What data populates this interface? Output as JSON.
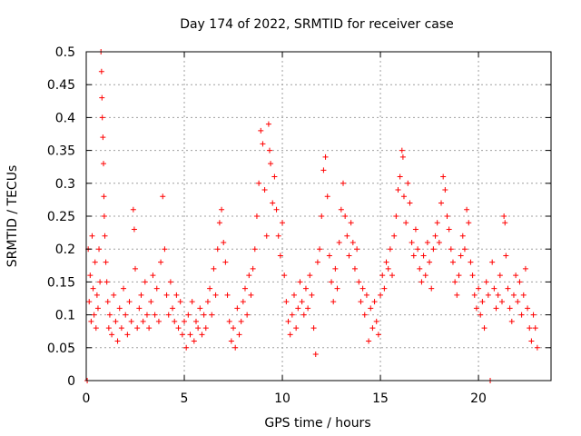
{
  "colors": {
    "marker": "#ff0000",
    "grid": "#a0a0a0",
    "axis": "#000000"
  },
  "chart_data": {
    "type": "scatter",
    "title": "Day 174 of 2022, SRMTID for receiver case",
    "xlabel": "GPS time / hours",
    "ylabel": "SRMTID / TECUs",
    "xlim": [
      0,
      23.7
    ],
    "ylim": [
      0,
      0.5
    ],
    "xticks": [
      0,
      5,
      10,
      15,
      20
    ],
    "xtick_labels": [
      "0",
      "5",
      "10",
      "15",
      "20"
    ],
    "yticks": [
      0,
      0.05,
      0.1,
      0.15,
      0.2,
      0.25,
      0.3,
      0.35,
      0.4,
      0.45,
      0.5
    ],
    "ytick_labels": [
      "0",
      "0.05",
      "0.1",
      "0.15",
      "0.2",
      "0.25",
      "0.3",
      "0.35",
      "0.4",
      "0.45",
      "0.5"
    ],
    "grid": true,
    "legend": "none",
    "marker": "+",
    "series": [
      {
        "name": "SRMTID",
        "points": [
          [
            0.05,
            0.0
          ],
          [
            0.1,
            0.2
          ],
          [
            0.15,
            0.12
          ],
          [
            0.2,
            0.16
          ],
          [
            0.25,
            0.09
          ],
          [
            0.3,
            0.22
          ],
          [
            0.35,
            0.14
          ],
          [
            0.4,
            0.1
          ],
          [
            0.45,
            0.18
          ],
          [
            0.5,
            0.08
          ],
          [
            0.55,
            0.13
          ],
          [
            0.6,
            0.11
          ],
          [
            0.65,
            0.2
          ],
          [
            0.7,
            0.15
          ],
          [
            0.75,
            0.5
          ],
          [
            0.78,
            0.47
          ],
          [
            0.8,
            0.43
          ],
          [
            0.82,
            0.4
          ],
          [
            0.85,
            0.37
          ],
          [
            0.88,
            0.33
          ],
          [
            0.9,
            0.28
          ],
          [
            0.92,
            0.25
          ],
          [
            0.95,
            0.22
          ],
          [
            1.0,
            0.18
          ],
          [
            1.05,
            0.15
          ],
          [
            1.1,
            0.12
          ],
          [
            1.15,
            0.08
          ],
          [
            1.2,
            0.1
          ],
          [
            1.3,
            0.07
          ],
          [
            1.4,
            0.13
          ],
          [
            1.5,
            0.09
          ],
          [
            1.6,
            0.06
          ],
          [
            1.7,
            0.11
          ],
          [
            1.8,
            0.08
          ],
          [
            1.9,
            0.14
          ],
          [
            2.0,
            0.1
          ],
          [
            2.1,
            0.07
          ],
          [
            2.2,
            0.12
          ],
          [
            2.3,
            0.09
          ],
          [
            2.4,
            0.26
          ],
          [
            2.45,
            0.23
          ],
          [
            2.5,
            0.17
          ],
          [
            2.6,
            0.08
          ],
          [
            2.7,
            0.11
          ],
          [
            2.8,
            0.13
          ],
          [
            2.9,
            0.09
          ],
          [
            3.0,
            0.15
          ],
          [
            3.1,
            0.1
          ],
          [
            3.2,
            0.08
          ],
          [
            3.3,
            0.12
          ],
          [
            3.4,
            0.16
          ],
          [
            3.5,
            0.1
          ],
          [
            3.6,
            0.14
          ],
          [
            3.7,
            0.09
          ],
          [
            3.8,
            0.18
          ],
          [
            3.9,
            0.28
          ],
          [
            4.0,
            0.2
          ],
          [
            4.1,
            0.13
          ],
          [
            4.2,
            0.1
          ],
          [
            4.3,
            0.15
          ],
          [
            4.4,
            0.11
          ],
          [
            4.5,
            0.09
          ],
          [
            4.6,
            0.13
          ],
          [
            4.7,
            0.08
          ],
          [
            4.8,
            0.12
          ],
          [
            4.9,
            0.07
          ],
          [
            5.0,
            0.09
          ],
          [
            5.1,
            0.05
          ],
          [
            5.2,
            0.1
          ],
          [
            5.3,
            0.07
          ],
          [
            5.4,
            0.12
          ],
          [
            5.5,
            0.06
          ],
          [
            5.6,
            0.09
          ],
          [
            5.7,
            0.08
          ],
          [
            5.8,
            0.11
          ],
          [
            5.9,
            0.07
          ],
          [
            6.0,
            0.1
          ],
          [
            6.1,
            0.08
          ],
          [
            6.2,
            0.12
          ],
          [
            6.3,
            0.14
          ],
          [
            6.4,
            0.1
          ],
          [
            6.5,
            0.17
          ],
          [
            6.6,
            0.13
          ],
          [
            6.7,
            0.2
          ],
          [
            6.8,
            0.24
          ],
          [
            6.9,
            0.26
          ],
          [
            7.0,
            0.21
          ],
          [
            7.1,
            0.18
          ],
          [
            7.2,
            0.13
          ],
          [
            7.3,
            0.09
          ],
          [
            7.4,
            0.06
          ],
          [
            7.5,
            0.08
          ],
          [
            7.6,
            0.05
          ],
          [
            7.7,
            0.11
          ],
          [
            7.8,
            0.07
          ],
          [
            7.9,
            0.09
          ],
          [
            8.0,
            0.12
          ],
          [
            8.1,
            0.14
          ],
          [
            8.2,
            0.1
          ],
          [
            8.3,
            0.16
          ],
          [
            8.4,
            0.13
          ],
          [
            8.5,
            0.17
          ],
          [
            8.6,
            0.2
          ],
          [
            8.7,
            0.25
          ],
          [
            8.8,
            0.3
          ],
          [
            8.9,
            0.38
          ],
          [
            9.0,
            0.36
          ],
          [
            9.1,
            0.29
          ],
          [
            9.2,
            0.22
          ],
          [
            9.3,
            0.39
          ],
          [
            9.35,
            0.35
          ],
          [
            9.4,
            0.33
          ],
          [
            9.5,
            0.27
          ],
          [
            9.6,
            0.31
          ],
          [
            9.7,
            0.26
          ],
          [
            9.8,
            0.22
          ],
          [
            9.9,
            0.19
          ],
          [
            10.0,
            0.24
          ],
          [
            10.1,
            0.16
          ],
          [
            10.2,
            0.12
          ],
          [
            10.3,
            0.09
          ],
          [
            10.4,
            0.07
          ],
          [
            10.5,
            0.1
          ],
          [
            10.6,
            0.13
          ],
          [
            10.7,
            0.08
          ],
          [
            10.8,
            0.11
          ],
          [
            10.9,
            0.15
          ],
          [
            11.0,
            0.12
          ],
          [
            11.1,
            0.1
          ],
          [
            11.2,
            0.14
          ],
          [
            11.3,
            0.11
          ],
          [
            11.4,
            0.16
          ],
          [
            11.5,
            0.13
          ],
          [
            11.6,
            0.08
          ],
          [
            11.7,
            0.04
          ],
          [
            11.8,
            0.18
          ],
          [
            11.9,
            0.2
          ],
          [
            12.0,
            0.25
          ],
          [
            12.1,
            0.32
          ],
          [
            12.2,
            0.34
          ],
          [
            12.3,
            0.28
          ],
          [
            12.4,
            0.19
          ],
          [
            12.5,
            0.15
          ],
          [
            12.6,
            0.12
          ],
          [
            12.7,
            0.17
          ],
          [
            12.8,
            0.14
          ],
          [
            12.9,
            0.21
          ],
          [
            13.0,
            0.26
          ],
          [
            13.1,
            0.3
          ],
          [
            13.2,
            0.25
          ],
          [
            13.3,
            0.22
          ],
          [
            13.4,
            0.19
          ],
          [
            13.5,
            0.24
          ],
          [
            13.6,
            0.21
          ],
          [
            13.7,
            0.17
          ],
          [
            13.8,
            0.2
          ],
          [
            13.9,
            0.15
          ],
          [
            14.0,
            0.12
          ],
          [
            14.1,
            0.14
          ],
          [
            14.2,
            0.1
          ],
          [
            14.3,
            0.13
          ],
          [
            14.4,
            0.06
          ],
          [
            14.5,
            0.11
          ],
          [
            14.6,
            0.08
          ],
          [
            14.7,
            0.12
          ],
          [
            14.8,
            0.09
          ],
          [
            14.9,
            0.07
          ],
          [
            15.0,
            0.13
          ],
          [
            15.1,
            0.16
          ],
          [
            15.2,
            0.14
          ],
          [
            15.3,
            0.18
          ],
          [
            15.4,
            0.17
          ],
          [
            15.5,
            0.2
          ],
          [
            15.6,
            0.16
          ],
          [
            15.7,
            0.22
          ],
          [
            15.8,
            0.25
          ],
          [
            15.9,
            0.29
          ],
          [
            16.0,
            0.31
          ],
          [
            16.1,
            0.35
          ],
          [
            16.15,
            0.34
          ],
          [
            16.2,
            0.28
          ],
          [
            16.3,
            0.24
          ],
          [
            16.4,
            0.3
          ],
          [
            16.5,
            0.27
          ],
          [
            16.6,
            0.21
          ],
          [
            16.7,
            0.19
          ],
          [
            16.8,
            0.23
          ],
          [
            16.9,
            0.2
          ],
          [
            17.0,
            0.17
          ],
          [
            17.1,
            0.15
          ],
          [
            17.2,
            0.19
          ],
          [
            17.3,
            0.16
          ],
          [
            17.4,
            0.21
          ],
          [
            17.5,
            0.18
          ],
          [
            17.6,
            0.14
          ],
          [
            17.7,
            0.2
          ],
          [
            17.8,
            0.22
          ],
          [
            17.9,
            0.24
          ],
          [
            18.0,
            0.21
          ],
          [
            18.1,
            0.27
          ],
          [
            18.2,
            0.31
          ],
          [
            18.3,
            0.29
          ],
          [
            18.4,
            0.25
          ],
          [
            18.5,
            0.23
          ],
          [
            18.6,
            0.2
          ],
          [
            18.7,
            0.18
          ],
          [
            18.8,
            0.15
          ],
          [
            18.9,
            0.13
          ],
          [
            19.0,
            0.16
          ],
          [
            19.1,
            0.19
          ],
          [
            19.2,
            0.22
          ],
          [
            19.3,
            0.2
          ],
          [
            19.4,
            0.26
          ],
          [
            19.5,
            0.24
          ],
          [
            19.6,
            0.18
          ],
          [
            19.7,
            0.16
          ],
          [
            19.8,
            0.13
          ],
          [
            19.9,
            0.11
          ],
          [
            20.0,
            0.14
          ],
          [
            20.1,
            0.1
          ],
          [
            20.2,
            0.12
          ],
          [
            20.3,
            0.08
          ],
          [
            20.4,
            0.15
          ],
          [
            20.5,
            0.13
          ],
          [
            20.6,
            0.0
          ],
          [
            20.7,
            0.18
          ],
          [
            20.8,
            0.14
          ],
          [
            20.9,
            0.11
          ],
          [
            21.0,
            0.13
          ],
          [
            21.1,
            0.16
          ],
          [
            21.2,
            0.12
          ],
          [
            21.3,
            0.25
          ],
          [
            21.35,
            0.24
          ],
          [
            21.4,
            0.19
          ],
          [
            21.5,
            0.14
          ],
          [
            21.6,
            0.11
          ],
          [
            21.7,
            0.09
          ],
          [
            21.8,
            0.13
          ],
          [
            21.9,
            0.16
          ],
          [
            22.0,
            0.12
          ],
          [
            22.1,
            0.15
          ],
          [
            22.2,
            0.1
          ],
          [
            22.3,
            0.13
          ],
          [
            22.4,
            0.17
          ],
          [
            22.5,
            0.11
          ],
          [
            22.6,
            0.08
          ],
          [
            22.7,
            0.06
          ],
          [
            22.8,
            0.1
          ],
          [
            22.9,
            0.08
          ],
          [
            23.0,
            0.05
          ]
        ]
      }
    ]
  }
}
